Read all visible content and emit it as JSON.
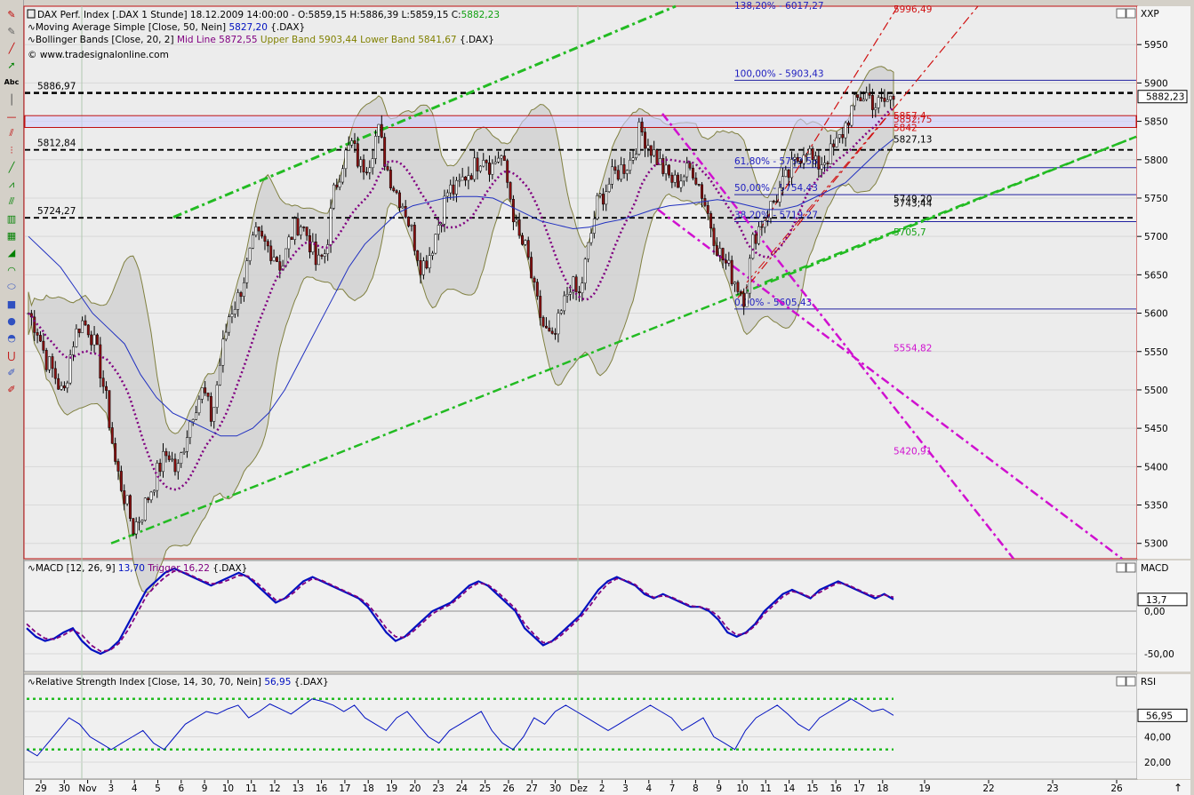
{
  "toolbar": {
    "tools": [
      {
        "name": "pencil-icon",
        "glyph": "✎",
        "color": "#c00000"
      },
      {
        "name": "pen-icon",
        "glyph": "✎",
        "color": "#606060"
      },
      {
        "name": "trend-line-icon",
        "glyph": "╱",
        "color": "#c00000"
      },
      {
        "name": "arrow-icon",
        "glyph": "➚",
        "color": "#008000"
      },
      {
        "name": "text-tool-icon",
        "glyph": "Abc",
        "color": "#000000"
      },
      {
        "name": "vertical-line-icon",
        "glyph": "│",
        "color": "#404040"
      },
      {
        "name": "horizontal-line-icon",
        "glyph": "—",
        "color": "#c00000"
      },
      {
        "name": "channel-icon",
        "glyph": "⫽",
        "color": "#c00000"
      },
      {
        "name": "fibonacci-icon",
        "glyph": "⫶",
        "color": "#c00000"
      },
      {
        "name": "ray-icon",
        "glyph": "╱",
        "color": "#008000"
      },
      {
        "name": "regression-icon",
        "glyph": "⩘",
        "color": "#008000"
      },
      {
        "name": "speed-lines-icon",
        "glyph": "⫻",
        "color": "#008000"
      },
      {
        "name": "gann-icon",
        "glyph": "▥",
        "color": "#008000"
      },
      {
        "name": "andrews-icon",
        "glyph": "▦",
        "color": "#008000"
      },
      {
        "name": "fan-icon",
        "glyph": "◢",
        "color": "#008000"
      },
      {
        "name": "arc-icon",
        "glyph": "◠",
        "color": "#008000"
      },
      {
        "name": "ellipse-icon",
        "glyph": "⬭",
        "color": "#3050c0"
      },
      {
        "name": "rectangle-icon",
        "glyph": "■",
        "color": "#3050c0"
      },
      {
        "name": "circle-icon",
        "glyph": "●",
        "color": "#3050c0"
      },
      {
        "name": "half-circle-icon",
        "glyph": "◓",
        "color": "#3050c0"
      },
      {
        "name": "magnet-icon",
        "glyph": "⋃",
        "color": "#c00000"
      },
      {
        "name": "draw-settings-icon",
        "glyph": "✐",
        "color": "#3050c0"
      },
      {
        "name": "eraser-icon",
        "glyph": "✐",
        "color": "#c00000"
      }
    ]
  },
  "main_panel": {
    "title_line": "DAX Perf. Index [.DAX  1 Stunde] 18.12.2009 14:00:00 - O:5859,15 H:5886,39 L:5859,15 C:",
    "title_close": "5882,23",
    "sma_label": "Moving Average Simple [Close, 50, Nein]",
    "sma_value": "5827,20",
    "sma_suffix": "{.DAX}",
    "bb_label": "Bollinger Bands [Close, 20, 2]",
    "bb_mid": "Mid Line 5872,55",
    "bb_upper": "Upper Band 5903,44",
    "bb_lower": "Lower Band 5841,67",
    "bb_suffix": "{.DAX}",
    "source": "© www.tradesignalonline.com",
    "axis_title": "XXP",
    "price_tag": "5882,23",
    "price_levels": [
      {
        "label": "5886,97",
        "value": 5886.97
      },
      {
        "label": "5812,84",
        "value": 5812.84
      },
      {
        "label": "5724,27",
        "value": 5724.27
      }
    ],
    "fib_labels": [
      {
        "text": "100,00% - 5903,43",
        "value": 5903.43,
        "at": "left"
      },
      {
        "text": "61,80% - 5789,58",
        "value": 5789.58,
        "at": "left"
      },
      {
        "text": "50,00% - 5754,43",
        "value": 5754.43,
        "at": "left"
      },
      {
        "text": "38,20% - 5719,27",
        "value": 5719.27,
        "at": "left"
      },
      {
        "text": "0,00% - 5605,43",
        "value": 5605.43,
        "at": "left"
      },
      {
        "text": "138,20% - 6017,27",
        "value": 6017.27,
        "at": "top"
      }
    ],
    "right_labels": [
      {
        "text": "5996,49",
        "color": "#d01010",
        "value": 5996.49
      },
      {
        "text": "5857,4",
        "color": "#d01010",
        "value": 5857.4
      },
      {
        "text": "5852,75",
        "color": "#d01010",
        "value": 5852.75
      },
      {
        "text": "5842",
        "color": "#d01010",
        "value": 5842
      },
      {
        "text": "5827,13",
        "color": "#000000",
        "value": 5827.13
      },
      {
        "text": "5749,20",
        "color": "#000000",
        "value": 5749.2
      },
      {
        "text": "5743,44",
        "color": "#000000",
        "value": 5743.44
      },
      {
        "text": "5705,7",
        "color": "#10a010",
        "value": 5705.7
      },
      {
        "text": "5554,82",
        "color": "#d010d0",
        "value": 5554.82
      },
      {
        "text": "5420,91",
        "color": "#d010d0",
        "value": 5420.91
      }
    ]
  },
  "macd_panel": {
    "label": "MACD [12, 26, 9]",
    "macd_value": "13,70",
    "trigger": "Trigger 16,22",
    "suffix": "{.DAX}",
    "axis_title": "MACD",
    "value_tag": "13,7"
  },
  "rsi_panel": {
    "label": "Relative Strength Index [Close, 14, 30, 70, Nein]",
    "value": "56,95",
    "suffix": "{.DAX}",
    "axis_title": "RSI",
    "value_tag": "56,95"
  },
  "chart_data": [
    {
      "type": "candlestick",
      "title": "DAX Perf. Index [.DAX  1 Stunde] 18.12.2009 14:00:00",
      "ylim": [
        5280,
        6000
      ],
      "y_ticks": [
        5300,
        5350,
        5400,
        5450,
        5500,
        5550,
        5600,
        5650,
        5700,
        5750,
        5800,
        5850,
        5900,
        5950
      ],
      "x_tick_labels": [
        "29",
        "30",
        "Nov",
        "3",
        "4",
        "5",
        "6",
        "9",
        "10",
        "11",
        "12",
        "13",
        "16",
        "17",
        "18",
        "19",
        "20",
        "23",
        "24",
        "25",
        "26",
        "27",
        "30",
        "Dez",
        "2",
        "3",
        "4",
        "7",
        "8",
        "9",
        "10",
        "11",
        "14",
        "15",
        "16",
        "17",
        "18",
        "19",
        "22",
        "23",
        "26"
      ],
      "close_path": [
        5600,
        5580,
        5540,
        5520,
        5490,
        5560,
        5590,
        5580,
        5540,
        5480,
        5400,
        5360,
        5320,
        5340,
        5370,
        5400,
        5420,
        5390,
        5440,
        5480,
        5500,
        5460,
        5540,
        5600,
        5620,
        5660,
        5700,
        5690,
        5680,
        5660,
        5700,
        5720,
        5700,
        5660,
        5680,
        5760,
        5800,
        5820,
        5790,
        5800,
        5840,
        5790,
        5760,
        5740,
        5700,
        5660,
        5680,
        5720,
        5760,
        5760,
        5780,
        5790,
        5810,
        5790,
        5810,
        5760,
        5700,
        5680,
        5620,
        5580,
        5560,
        5600,
        5640,
        5620,
        5680,
        5740,
        5760,
        5780,
        5790,
        5800,
        5840,
        5820,
        5800,
        5780,
        5770,
        5780,
        5790,
        5760,
        5720,
        5680,
        5660,
        5640,
        5620,
        5700,
        5720,
        5740,
        5760,
        5780,
        5800,
        5820,
        5790,
        5800,
        5810,
        5830,
        5860,
        5880,
        5886,
        5870,
        5875,
        5882
      ],
      "sma50_path": [
        5700,
        5680,
        5660,
        5630,
        5600,
        5580,
        5560,
        5520,
        5490,
        5470,
        5460,
        5450,
        5440,
        5440,
        5450,
        5470,
        5500,
        5540,
        5580,
        5620,
        5660,
        5690,
        5710,
        5730,
        5740,
        5745,
        5750,
        5752,
        5752,
        5750,
        5740,
        5730,
        5720,
        5715,
        5710,
        5712,
        5718,
        5722,
        5728,
        5735,
        5740,
        5742,
        5745,
        5748,
        5745,
        5740,
        5735,
        5735,
        5740,
        5750,
        5760,
        5770,
        5790,
        5810,
        5827
      ],
      "trendlines": [
        {
          "name": "upper channel",
          "color": "#22bb22"
        },
        {
          "name": "lower channel",
          "color": "#22bb22"
        },
        {
          "name": "mid channel",
          "color": "#22bb22"
        },
        {
          "name": "down channel",
          "color": "#d010d0"
        },
        {
          "name": "up channel short",
          "color": "#d01010"
        }
      ]
    },
    {
      "type": "line",
      "title": "MACD [12, 26, 9]",
      "y_ticks": [
        0,
        -50
      ],
      "y_tick_labels": [
        "0,00",
        "-50,00"
      ],
      "ylim": [
        -70,
        50
      ],
      "series": [
        {
          "name": "MACD",
          "color": "#0010c0",
          "values": [
            -20,
            -30,
            -35,
            -32,
            -25,
            -20,
            -35,
            -45,
            -50,
            -45,
            -35,
            -15,
            5,
            25,
            35,
            45,
            50,
            45,
            40,
            35,
            30,
            35,
            40,
            45,
            40,
            30,
            20,
            10,
            15,
            25,
            35,
            40,
            35,
            30,
            25,
            20,
            15,
            5,
            -10,
            -25,
            -35,
            -30,
            -20,
            -10,
            0,
            5,
            10,
            20,
            30,
            35,
            30,
            20,
            10,
            0,
            -20,
            -30,
            -40,
            -35,
            -25,
            -15,
            -5,
            10,
            25,
            35,
            40,
            35,
            30,
            20,
            15,
            20,
            15,
            10,
            5,
            5,
            0,
            -10,
            -25,
            -30,
            -25,
            -15,
            0,
            10,
            20,
            25,
            20,
            15,
            25,
            30,
            35,
            30,
            25,
            20,
            15,
            20,
            13.7
          ]
        },
        {
          "name": "Trigger",
          "color": "#800080",
          "values": [
            -15,
            -25,
            -32,
            -33,
            -28,
            -22,
            -28,
            -40,
            -47,
            -46,
            -38,
            -22,
            -2,
            18,
            30,
            40,
            47,
            46,
            41,
            36,
            32,
            33,
            37,
            42,
            41,
            33,
            23,
            13,
            14,
            22,
            32,
            38,
            36,
            31,
            26,
            21,
            16,
            8,
            -5,
            -20,
            -30,
            -31,
            -23,
            -13,
            -3,
            3,
            8,
            17,
            27,
            33,
            31,
            23,
            13,
            3,
            -15,
            -27,
            -37,
            -36,
            -28,
            -18,
            -8,
            5,
            20,
            32,
            38,
            36,
            31,
            22,
            16,
            18,
            16,
            11,
            6,
            5,
            2,
            -6,
            -20,
            -28,
            -26,
            -17,
            -3,
            7,
            17,
            23,
            21,
            16,
            22,
            28,
            33,
            31,
            26,
            21,
            17,
            19,
            16.22
          ]
        }
      ]
    },
    {
      "type": "line",
      "title": "Relative Strength Index [Close, 14, 30, 70, Nein]",
      "y_ticks": [
        20,
        40,
        60
      ],
      "y_tick_labels": [
        "20,00",
        "40,00",
        "60,00"
      ],
      "ylim": [
        10,
        80
      ],
      "levels": [
        30,
        70
      ],
      "series": [
        {
          "name": "RSI",
          "color": "#0010c0",
          "values": [
            30,
            25,
            35,
            45,
            55,
            50,
            40,
            35,
            30,
            35,
            40,
            45,
            35,
            30,
            40,
            50,
            55,
            60,
            58,
            62,
            65,
            55,
            60,
            66,
            62,
            58,
            64,
            70,
            68,
            65,
            60,
            65,
            55,
            50,
            45,
            55,
            60,
            50,
            40,
            35,
            45,
            50,
            55,
            60,
            45,
            35,
            30,
            40,
            55,
            50,
            60,
            65,
            60,
            55,
            50,
            45,
            50,
            55,
            60,
            65,
            60,
            55,
            45,
            50,
            55,
            40,
            35,
            30,
            45,
            55,
            60,
            65,
            58,
            50,
            45,
            55,
            60,
            65,
            70,
            65,
            60,
            62,
            56.95
          ]
        }
      ]
    }
  ]
}
